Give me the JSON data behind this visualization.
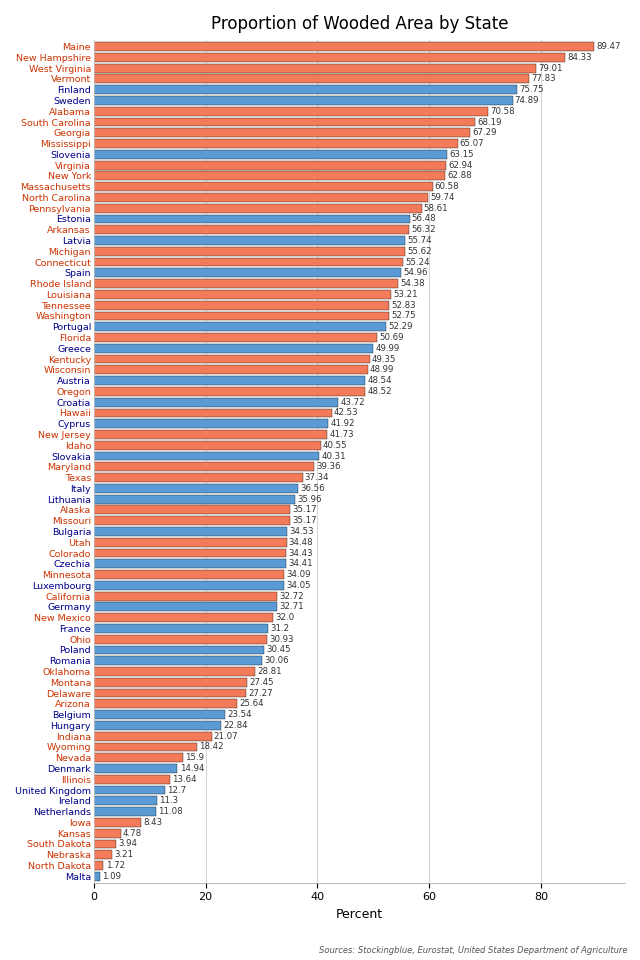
{
  "title": "Proportion of Wooded Area by State",
  "xlabel": "Percent",
  "source": "Sources: Stockingblue, Eurostat, United States Department of Agriculture",
  "entries": [
    {
      "name": "Maine",
      "value": 89.47,
      "color": "#F47B5A",
      "label_color": "#CC3300"
    },
    {
      "name": "New Hampshire",
      "value": 84.33,
      "color": "#F47B5A",
      "label_color": "#CC3300"
    },
    {
      "name": "West Virginia",
      "value": 79.01,
      "color": "#F47B5A",
      "label_color": "#CC3300"
    },
    {
      "name": "Vermont",
      "value": 77.83,
      "color": "#F47B5A",
      "label_color": "#CC3300"
    },
    {
      "name": "Finland",
      "value": 75.75,
      "color": "#5B9BD5",
      "label_color": "#00008B"
    },
    {
      "name": "Sweden",
      "value": 74.89,
      "color": "#5B9BD5",
      "label_color": "#00008B"
    },
    {
      "name": "Alabama",
      "value": 70.58,
      "color": "#F47B5A",
      "label_color": "#CC3300"
    },
    {
      "name": "South Carolina",
      "value": 68.19,
      "color": "#F47B5A",
      "label_color": "#CC3300"
    },
    {
      "name": "Georgia",
      "value": 67.29,
      "color": "#F47B5A",
      "label_color": "#CC3300"
    },
    {
      "name": "Mississippi",
      "value": 65.07,
      "color": "#F47B5A",
      "label_color": "#CC3300"
    },
    {
      "name": "Slovenia",
      "value": 63.15,
      "color": "#5B9BD5",
      "label_color": "#00008B"
    },
    {
      "name": "Virginia",
      "value": 62.94,
      "color": "#F47B5A",
      "label_color": "#CC3300"
    },
    {
      "name": "New York",
      "value": 62.88,
      "color": "#F47B5A",
      "label_color": "#CC3300"
    },
    {
      "name": "Massachusetts",
      "value": 60.58,
      "color": "#F47B5A",
      "label_color": "#CC3300"
    },
    {
      "name": "North Carolina",
      "value": 59.74,
      "color": "#F47B5A",
      "label_color": "#CC3300"
    },
    {
      "name": "Pennsylvania",
      "value": 58.61,
      "color": "#F47B5A",
      "label_color": "#CC3300"
    },
    {
      "name": "Estonia",
      "value": 56.48,
      "color": "#5B9BD5",
      "label_color": "#00008B"
    },
    {
      "name": "Arkansas",
      "value": 56.32,
      "color": "#F47B5A",
      "label_color": "#CC3300"
    },
    {
      "name": "Latvia",
      "value": 55.74,
      "color": "#5B9BD5",
      "label_color": "#00008B"
    },
    {
      "name": "Michigan",
      "value": 55.62,
      "color": "#F47B5A",
      "label_color": "#CC3300"
    },
    {
      "name": "Connecticut",
      "value": 55.24,
      "color": "#F47B5A",
      "label_color": "#CC3300"
    },
    {
      "name": "Spain",
      "value": 54.96,
      "color": "#5B9BD5",
      "label_color": "#00008B"
    },
    {
      "name": "Rhode Island",
      "value": 54.38,
      "color": "#F47B5A",
      "label_color": "#CC3300"
    },
    {
      "name": "Louisiana",
      "value": 53.21,
      "color": "#F47B5A",
      "label_color": "#CC3300"
    },
    {
      "name": "Tennessee",
      "value": 52.83,
      "color": "#F47B5A",
      "label_color": "#CC3300"
    },
    {
      "name": "Washington",
      "value": 52.75,
      "color": "#F47B5A",
      "label_color": "#CC3300"
    },
    {
      "name": "Portugal",
      "value": 52.29,
      "color": "#5B9BD5",
      "label_color": "#00008B"
    },
    {
      "name": "Florida",
      "value": 50.69,
      "color": "#F47B5A",
      "label_color": "#CC3300"
    },
    {
      "name": "Greece",
      "value": 49.99,
      "color": "#5B9BD5",
      "label_color": "#00008B"
    },
    {
      "name": "Kentucky",
      "value": 49.35,
      "color": "#F47B5A",
      "label_color": "#CC3300"
    },
    {
      "name": "Wisconsin",
      "value": 48.99,
      "color": "#F47B5A",
      "label_color": "#CC3300"
    },
    {
      "name": "Austria",
      "value": 48.54,
      "color": "#5B9BD5",
      "label_color": "#00008B"
    },
    {
      "name": "Oregon",
      "value": 48.52,
      "color": "#F47B5A",
      "label_color": "#CC3300"
    },
    {
      "name": "Croatia",
      "value": 43.72,
      "color": "#5B9BD5",
      "label_color": "#00008B"
    },
    {
      "name": "Hawaii",
      "value": 42.53,
      "color": "#F47B5A",
      "label_color": "#CC3300"
    },
    {
      "name": "Cyprus",
      "value": 41.92,
      "color": "#5B9BD5",
      "label_color": "#00008B"
    },
    {
      "name": "New Jersey",
      "value": 41.73,
      "color": "#F47B5A",
      "label_color": "#CC3300"
    },
    {
      "name": "Idaho",
      "value": 40.55,
      "color": "#F47B5A",
      "label_color": "#CC3300"
    },
    {
      "name": "Slovakia",
      "value": 40.31,
      "color": "#5B9BD5",
      "label_color": "#00008B"
    },
    {
      "name": "Maryland",
      "value": 39.36,
      "color": "#F47B5A",
      "label_color": "#CC3300"
    },
    {
      "name": "Texas",
      "value": 37.34,
      "color": "#F47B5A",
      "label_color": "#CC3300"
    },
    {
      "name": "Italy",
      "value": 36.56,
      "color": "#5B9BD5",
      "label_color": "#00008B"
    },
    {
      "name": "Lithuania",
      "value": 35.96,
      "color": "#5B9BD5",
      "label_color": "#00008B"
    },
    {
      "name": "Alaska",
      "value": 35.17,
      "color": "#F47B5A",
      "label_color": "#CC3300"
    },
    {
      "name": "Missouri",
      "value": 35.17,
      "color": "#F47B5A",
      "label_color": "#CC3300"
    },
    {
      "name": "Bulgaria",
      "value": 34.53,
      "color": "#5B9BD5",
      "label_color": "#00008B"
    },
    {
      "name": "Utah",
      "value": 34.48,
      "color": "#F47B5A",
      "label_color": "#CC3300"
    },
    {
      "name": "Colorado",
      "value": 34.43,
      "color": "#F47B5A",
      "label_color": "#CC3300"
    },
    {
      "name": "Czechia",
      "value": 34.41,
      "color": "#5B9BD5",
      "label_color": "#00008B"
    },
    {
      "name": "Minnesota",
      "value": 34.09,
      "color": "#F47B5A",
      "label_color": "#CC3300"
    },
    {
      "name": "Luxembourg",
      "value": 34.05,
      "color": "#5B9BD5",
      "label_color": "#00008B"
    },
    {
      "name": "California",
      "value": 32.72,
      "color": "#F47B5A",
      "label_color": "#CC3300"
    },
    {
      "name": "Germany",
      "value": 32.71,
      "color": "#5B9BD5",
      "label_color": "#00008B"
    },
    {
      "name": "New Mexico",
      "value": 32.0,
      "color": "#F47B5A",
      "label_color": "#CC3300"
    },
    {
      "name": "France",
      "value": 31.2,
      "color": "#5B9BD5",
      "label_color": "#00008B"
    },
    {
      "name": "Ohio",
      "value": 30.93,
      "color": "#F47B5A",
      "label_color": "#CC3300"
    },
    {
      "name": "Poland",
      "value": 30.45,
      "color": "#5B9BD5",
      "label_color": "#00008B"
    },
    {
      "name": "Romania",
      "value": 30.06,
      "color": "#5B9BD5",
      "label_color": "#00008B"
    },
    {
      "name": "Oklahoma",
      "value": 28.81,
      "color": "#F47B5A",
      "label_color": "#CC3300"
    },
    {
      "name": "Montana",
      "value": 27.45,
      "color": "#F47B5A",
      "label_color": "#CC3300"
    },
    {
      "name": "Delaware",
      "value": 27.27,
      "color": "#F47B5A",
      "label_color": "#CC3300"
    },
    {
      "name": "Arizona",
      "value": 25.64,
      "color": "#F47B5A",
      "label_color": "#CC3300"
    },
    {
      "name": "Belgium",
      "value": 23.54,
      "color": "#5B9BD5",
      "label_color": "#00008B"
    },
    {
      "name": "Hungary",
      "value": 22.84,
      "color": "#5B9BD5",
      "label_color": "#00008B"
    },
    {
      "name": "Indiana",
      "value": 21.07,
      "color": "#F47B5A",
      "label_color": "#CC3300"
    },
    {
      "name": "Wyoming",
      "value": 18.42,
      "color": "#F47B5A",
      "label_color": "#CC3300"
    },
    {
      "name": "Nevada",
      "value": 15.9,
      "color": "#F47B5A",
      "label_color": "#CC3300"
    },
    {
      "name": "Denmark",
      "value": 14.94,
      "color": "#5B9BD5",
      "label_color": "#00008B"
    },
    {
      "name": "Illinois",
      "value": 13.64,
      "color": "#F47B5A",
      "label_color": "#CC3300"
    },
    {
      "name": "United Kingdom",
      "value": 12.7,
      "color": "#5B9BD5",
      "label_color": "#00008B"
    },
    {
      "name": "Ireland",
      "value": 11.3,
      "color": "#5B9BD5",
      "label_color": "#00008B"
    },
    {
      "name": "Netherlands",
      "value": 11.08,
      "color": "#5B9BD5",
      "label_color": "#00008B"
    },
    {
      "name": "Iowa",
      "value": 8.43,
      "color": "#F47B5A",
      "label_color": "#CC3300"
    },
    {
      "name": "Kansas",
      "value": 4.78,
      "color": "#F47B5A",
      "label_color": "#CC3300"
    },
    {
      "name": "South Dakota",
      "value": 3.94,
      "color": "#F47B5A",
      "label_color": "#CC3300"
    },
    {
      "name": "Nebraska",
      "value": 3.21,
      "color": "#F47B5A",
      "label_color": "#CC3300"
    },
    {
      "name": "North Dakota",
      "value": 1.72,
      "color": "#F47B5A",
      "label_color": "#CC3300"
    },
    {
      "name": "Malta",
      "value": 1.09,
      "color": "#5B9BD5",
      "label_color": "#00008B"
    }
  ],
  "xlim": [
    0,
    95
  ],
  "xticks": [
    0,
    20,
    40,
    60,
    80
  ],
  "background_color": "#FFFFFF",
  "grid_color": "#CCCCCC",
  "title_fontsize": 12,
  "label_fontsize": 6.8,
  "value_fontsize": 6.2
}
